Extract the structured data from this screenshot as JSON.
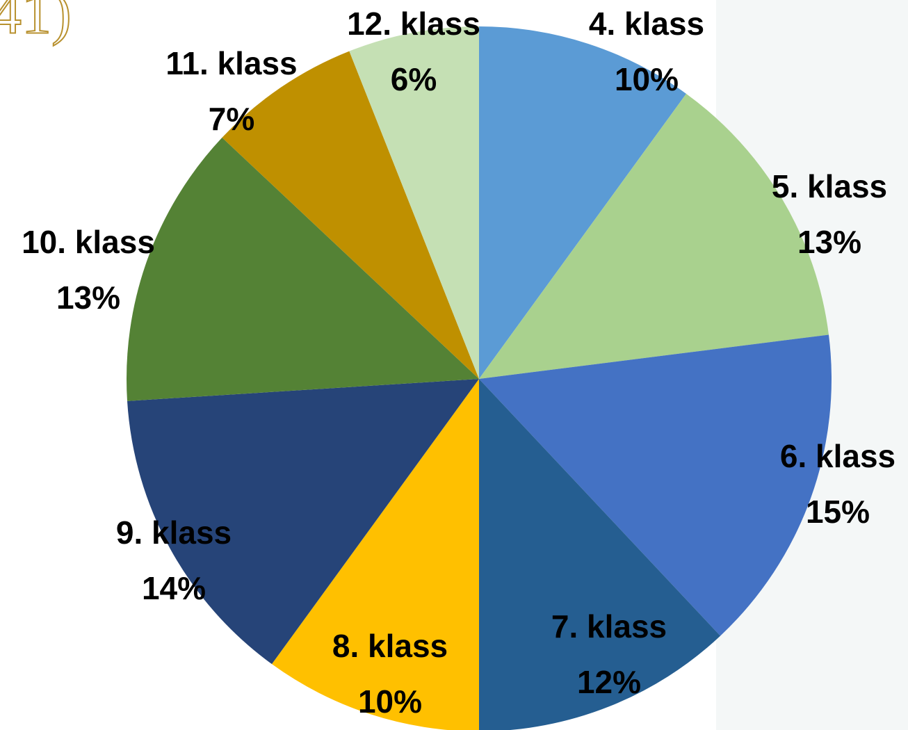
{
  "fragment": "41)",
  "chart_data": {
    "type": "pie",
    "categories": [
      "4. klass",
      "5. klass",
      "6. klass",
      "7. klass",
      "8. klass",
      "9. klass",
      "10. klass",
      "11. klass",
      "12. klass"
    ],
    "values": [
      10,
      13,
      15,
      12,
      10,
      14,
      13,
      7,
      6
    ],
    "value_labels": [
      "10%",
      "13%",
      "15%",
      "12%",
      "10%",
      "14%",
      "13%",
      "7%",
      "6%"
    ],
    "colors": [
      "#5b9bd5",
      "#a9d18e",
      "#4472c4",
      "#255e91",
      "#ffc000",
      "#264478",
      "#548235",
      "#bf9000",
      "#c5e0b4"
    ]
  }
}
